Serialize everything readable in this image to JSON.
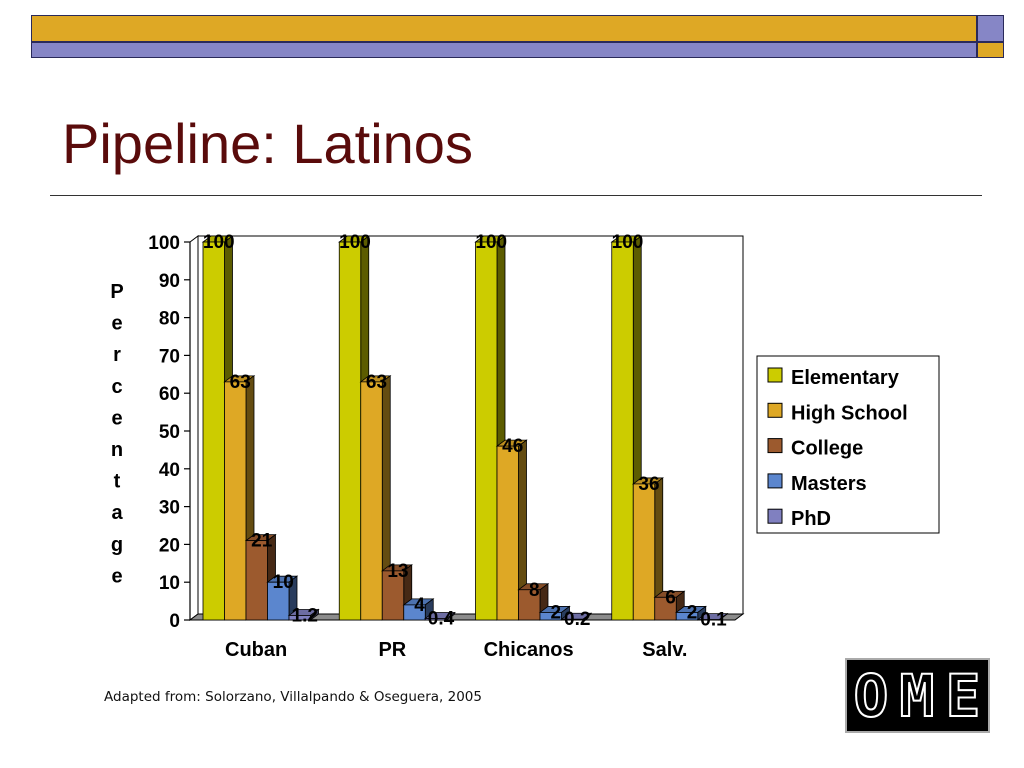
{
  "slide": {
    "title": "Pipeline: Latinos",
    "caption": "Adapted from: Solorzano, Villalpando & Oseguera, 2005"
  },
  "logo": {
    "letters": [
      "O",
      "M",
      "E"
    ]
  },
  "colors": {
    "bar_gold": "#DEA825",
    "bar_lavender": "#8686C6",
    "title_maroon": "#5A0B0B",
    "axis_dark": "#000000"
  },
  "chart_data": {
    "type": "bar",
    "title": "",
    "xlabel": "",
    "ylabel": "Percentage",
    "ylim": [
      0,
      100
    ],
    "yticks": [
      0,
      10,
      20,
      30,
      40,
      50,
      60,
      70,
      80,
      90,
      100
    ],
    "categories": [
      "Cuban",
      "PR",
      "Chicanos",
      "Salv."
    ],
    "legend_position": "right",
    "grid": false,
    "series": [
      {
        "name": "Elementary",
        "color": "#CCCC00",
        "values": [
          100,
          100,
          100,
          100
        ],
        "labels": [
          "100",
          "100",
          "100",
          "100"
        ]
      },
      {
        "name": "High School",
        "color": "#DEA825",
        "values": [
          63,
          63,
          46,
          36
        ],
        "labels": [
          "63",
          "63",
          "46",
          "36"
        ]
      },
      {
        "name": "College",
        "color": "#9C5A2E",
        "values": [
          21,
          13,
          8,
          6
        ],
        "labels": [
          "21",
          "13",
          "8",
          "6"
        ]
      },
      {
        "name": "Masters",
        "color": "#5B86CE",
        "values": [
          10,
          4,
          2,
          2
        ],
        "labels": [
          "10",
          "4",
          "2",
          "2"
        ]
      },
      {
        "name": "PhD",
        "color": "#8080C0",
        "values": [
          1.2,
          0.4,
          0.2,
          0.1
        ],
        "labels": [
          "1.2",
          "0.4",
          "0.2",
          "0.1"
        ]
      }
    ]
  }
}
